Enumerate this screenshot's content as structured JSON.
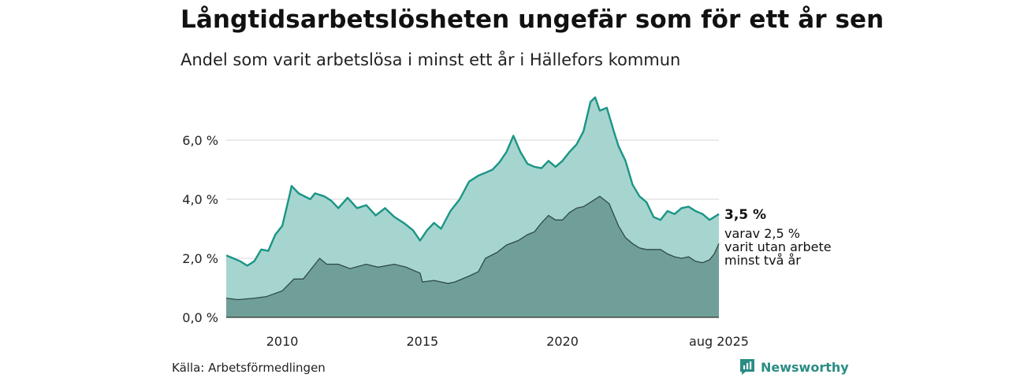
{
  "header": {
    "title": "Långtidsarbetslösheten ungefär som för ett år sen",
    "subtitle": "Andel som varit arbetslösa i minst ett år i Hällefors kommun"
  },
  "footer": {
    "source": "Källa: Arbetsförmedlingen",
    "brand": "Newsworthy"
  },
  "colors": {
    "total_fill": "#a6d5cf",
    "total_line": "#1b9486",
    "two_year_fill": "#6f9f98",
    "two_year_line": "#2f4a46",
    "gridline": "#dddddd",
    "brand": "#2a8c85"
  },
  "chart_data": {
    "type": "area",
    "x_domain": [
      "2008-01",
      "2025-08"
    ],
    "ylim": [
      0,
      8
    ],
    "y_ticks": [
      {
        "value": 0,
        "label": "0,0 %"
      },
      {
        "value": 2,
        "label": "2,0 %"
      },
      {
        "value": 4,
        "label": "4,0 %"
      },
      {
        "value": 6,
        "label": "6,0 %"
      }
    ],
    "x_ticks": [
      {
        "date": "2010-01",
        "label": "2010"
      },
      {
        "date": "2015-01",
        "label": "2015"
      },
      {
        "date": "2020-01",
        "label": "2020"
      },
      {
        "date": "2025-08",
        "label": "aug 2025"
      }
    ],
    "grid": true,
    "annotations": {
      "total_value": "3,5 %",
      "two_year_text": [
        "varav 2,5 %",
        "varit utan arbete",
        "minst två år"
      ]
    },
    "series": [
      {
        "key": "total",
        "points": [
          [
            "2008-01",
            2.1
          ],
          [
            "2008-04",
            2.0
          ],
          [
            "2008-07",
            1.9
          ],
          [
            "2008-10",
            1.75
          ],
          [
            "2009-01",
            1.9
          ],
          [
            "2009-04",
            2.3
          ],
          [
            "2009-07",
            2.25
          ],
          [
            "2009-10",
            2.8
          ],
          [
            "2010-01",
            3.1
          ],
          [
            "2010-04",
            4.1
          ],
          [
            "2010-05",
            4.45
          ],
          [
            "2010-08",
            4.2
          ],
          [
            "2011-01",
            4.0
          ],
          [
            "2011-03",
            4.2
          ],
          [
            "2011-07",
            4.1
          ],
          [
            "2011-10",
            3.95
          ],
          [
            "2012-01",
            3.7
          ],
          [
            "2012-05",
            4.05
          ],
          [
            "2012-09",
            3.7
          ],
          [
            "2013-01",
            3.8
          ],
          [
            "2013-05",
            3.45
          ],
          [
            "2013-09",
            3.7
          ],
          [
            "2014-01",
            3.4
          ],
          [
            "2014-05",
            3.2
          ],
          [
            "2014-09",
            2.95
          ],
          [
            "2014-12",
            2.6
          ],
          [
            "2015-03",
            2.95
          ],
          [
            "2015-06",
            3.2
          ],
          [
            "2015-09",
            3.0
          ],
          [
            "2016-01",
            3.6
          ],
          [
            "2016-05",
            4.0
          ],
          [
            "2016-09",
            4.6
          ],
          [
            "2017-01",
            4.8
          ],
          [
            "2017-04",
            4.9
          ],
          [
            "2017-07",
            5.0
          ],
          [
            "2017-10",
            5.25
          ],
          [
            "2018-01",
            5.6
          ],
          [
            "2018-04",
            6.15
          ],
          [
            "2018-07",
            5.6
          ],
          [
            "2018-10",
            5.2
          ],
          [
            "2019-01",
            5.1
          ],
          [
            "2019-04",
            5.05
          ],
          [
            "2019-07",
            5.3
          ],
          [
            "2019-10",
            5.1
          ],
          [
            "2020-01",
            5.3
          ],
          [
            "2020-04",
            5.6
          ],
          [
            "2020-07",
            5.85
          ],
          [
            "2020-10",
            6.3
          ],
          [
            "2021-01",
            7.3
          ],
          [
            "2021-03",
            7.45
          ],
          [
            "2021-05",
            7.0
          ],
          [
            "2021-08",
            7.1
          ],
          [
            "2021-11",
            6.3
          ],
          [
            "2022-01",
            5.8
          ],
          [
            "2022-04",
            5.3
          ],
          [
            "2022-07",
            4.5
          ],
          [
            "2022-10",
            4.1
          ],
          [
            "2023-01",
            3.9
          ],
          [
            "2023-04",
            3.4
          ],
          [
            "2023-07",
            3.3
          ],
          [
            "2023-10",
            3.6
          ],
          [
            "2024-01",
            3.5
          ],
          [
            "2024-04",
            3.7
          ],
          [
            "2024-07",
            3.75
          ],
          [
            "2024-10",
            3.6
          ],
          [
            "2025-01",
            3.5
          ],
          [
            "2025-04",
            3.3
          ],
          [
            "2025-06",
            3.4
          ],
          [
            "2025-08",
            3.5
          ]
        ]
      },
      {
        "key": "two_year",
        "points": [
          [
            "2008-01",
            0.65
          ],
          [
            "2008-06",
            0.6
          ],
          [
            "2009-01",
            0.65
          ],
          [
            "2009-06",
            0.7
          ],
          [
            "2010-01",
            0.9
          ],
          [
            "2010-06",
            1.3
          ],
          [
            "2010-10",
            1.3
          ],
          [
            "2011-01",
            1.6
          ],
          [
            "2011-05",
            2.0
          ],
          [
            "2011-08",
            1.8
          ],
          [
            "2012-01",
            1.8
          ],
          [
            "2012-06",
            1.65
          ],
          [
            "2013-01",
            1.8
          ],
          [
            "2013-06",
            1.7
          ],
          [
            "2014-01",
            1.8
          ],
          [
            "2014-06",
            1.7
          ],
          [
            "2014-12",
            1.5
          ],
          [
            "2015-01",
            1.2
          ],
          [
            "2015-06",
            1.25
          ],
          [
            "2015-12",
            1.15
          ],
          [
            "2016-03",
            1.2
          ],
          [
            "2016-09",
            1.4
          ],
          [
            "2017-01",
            1.55
          ],
          [
            "2017-04",
            2.0
          ],
          [
            "2017-09",
            2.2
          ],
          [
            "2018-01",
            2.45
          ],
          [
            "2018-06",
            2.6
          ],
          [
            "2018-10",
            2.8
          ],
          [
            "2019-01",
            2.9
          ],
          [
            "2019-04",
            3.2
          ],
          [
            "2019-07",
            3.45
          ],
          [
            "2019-10",
            3.3
          ],
          [
            "2020-01",
            3.3
          ],
          [
            "2020-04",
            3.55
          ],
          [
            "2020-07",
            3.7
          ],
          [
            "2020-10",
            3.75
          ],
          [
            "2021-01",
            3.9
          ],
          [
            "2021-05",
            4.1
          ],
          [
            "2021-09",
            3.85
          ],
          [
            "2022-01",
            3.1
          ],
          [
            "2022-04",
            2.7
          ],
          [
            "2022-07",
            2.5
          ],
          [
            "2022-10",
            2.35
          ],
          [
            "2023-01",
            2.3
          ],
          [
            "2023-04",
            2.3
          ],
          [
            "2023-07",
            2.3
          ],
          [
            "2023-10",
            2.15
          ],
          [
            "2024-01",
            2.05
          ],
          [
            "2024-04",
            2.0
          ],
          [
            "2024-07",
            2.05
          ],
          [
            "2024-10",
            1.9
          ],
          [
            "2025-01",
            1.85
          ],
          [
            "2025-04",
            1.95
          ],
          [
            "2025-06",
            2.15
          ],
          [
            "2025-08",
            2.5
          ]
        ]
      }
    ]
  }
}
